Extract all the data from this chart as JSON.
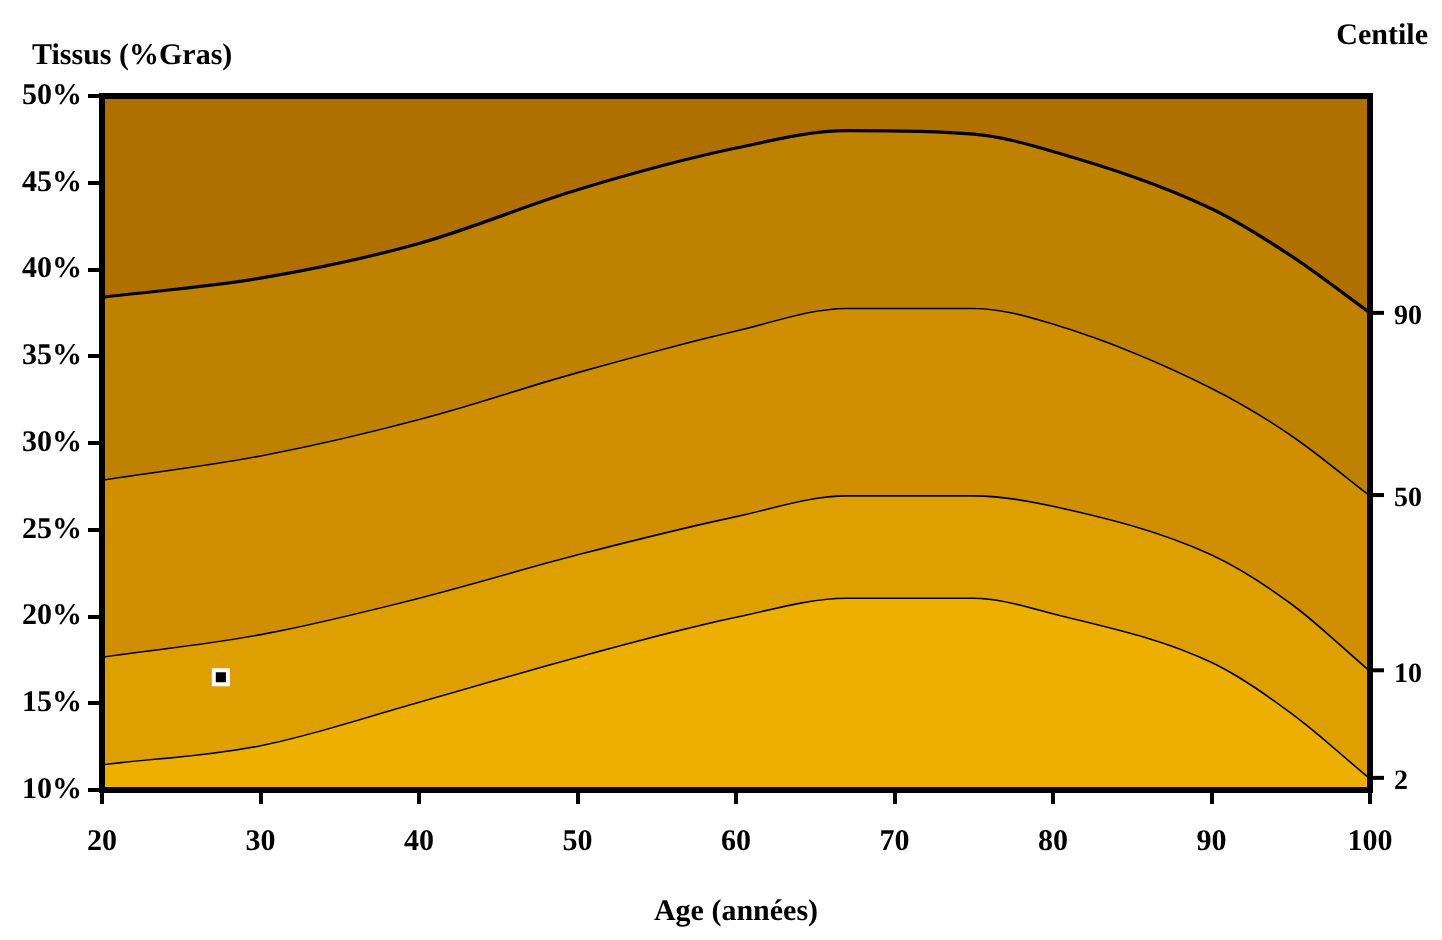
{
  "chart_data": {
    "type": "area",
    "xlabel": "Age (années)",
    "ylabel": "Tissus (%Gras)",
    "legend_title": "Centile",
    "x": [
      20,
      30,
      40,
      50,
      60,
      67,
      75,
      80,
      90,
      95,
      100
    ],
    "xlim": [
      20,
      100
    ],
    "xticks": [
      20,
      30,
      40,
      50,
      60,
      70,
      80,
      90,
      100
    ],
    "ylim": [
      10,
      50
    ],
    "yticks": [
      {
        "value": 10,
        "label": "10%"
      },
      {
        "value": 15,
        "label": "15%"
      },
      {
        "value": 20,
        "label": "20%"
      },
      {
        "value": 25,
        "label": "25%"
      },
      {
        "value": 30,
        "label": "30%"
      },
      {
        "value": 35,
        "label": "35%"
      },
      {
        "value": 40,
        "label": "40%"
      },
      {
        "value": 45,
        "label": "45%"
      },
      {
        "value": 50,
        "label": "50%"
      }
    ],
    "grid": false,
    "legend": "right",
    "marker": "none",
    "bands": [
      {
        "axis": "y",
        "from": 37.5,
        "to": 50,
        "color": "#b07000"
      }
    ],
    "series": [
      {
        "name": "2",
        "color": "#eeb000",
        "values": [
          11.5,
          12.6,
          15.1,
          17.7,
          20.0,
          21.1,
          21.1,
          20.2,
          17.4,
          14.5,
          10.7
        ]
      },
      {
        "name": "10",
        "color": "#dda000",
        "values": [
          17.7,
          19.0,
          21.1,
          23.6,
          25.8,
          27.0,
          27.0,
          26.4,
          23.6,
          20.8,
          16.9
        ]
      },
      {
        "name": "50",
        "color": "#d08f00",
        "values": [
          27.9,
          29.3,
          31.4,
          34.1,
          36.5,
          37.8,
          37.8,
          36.9,
          33.2,
          30.5,
          27.0
        ]
      },
      {
        "name": "90",
        "color": "#bf8200",
        "values": [
          38.4,
          39.5,
          41.5,
          44.6,
          47.0,
          48.0,
          47.8,
          46.8,
          43.5,
          40.8,
          37.5
        ]
      },
      {
        "type": "scatter",
        "color": "#000000",
        "marker": "square",
        "x": [
          27.5
        ],
        "values": [
          16.5
        ]
      }
    ]
  }
}
